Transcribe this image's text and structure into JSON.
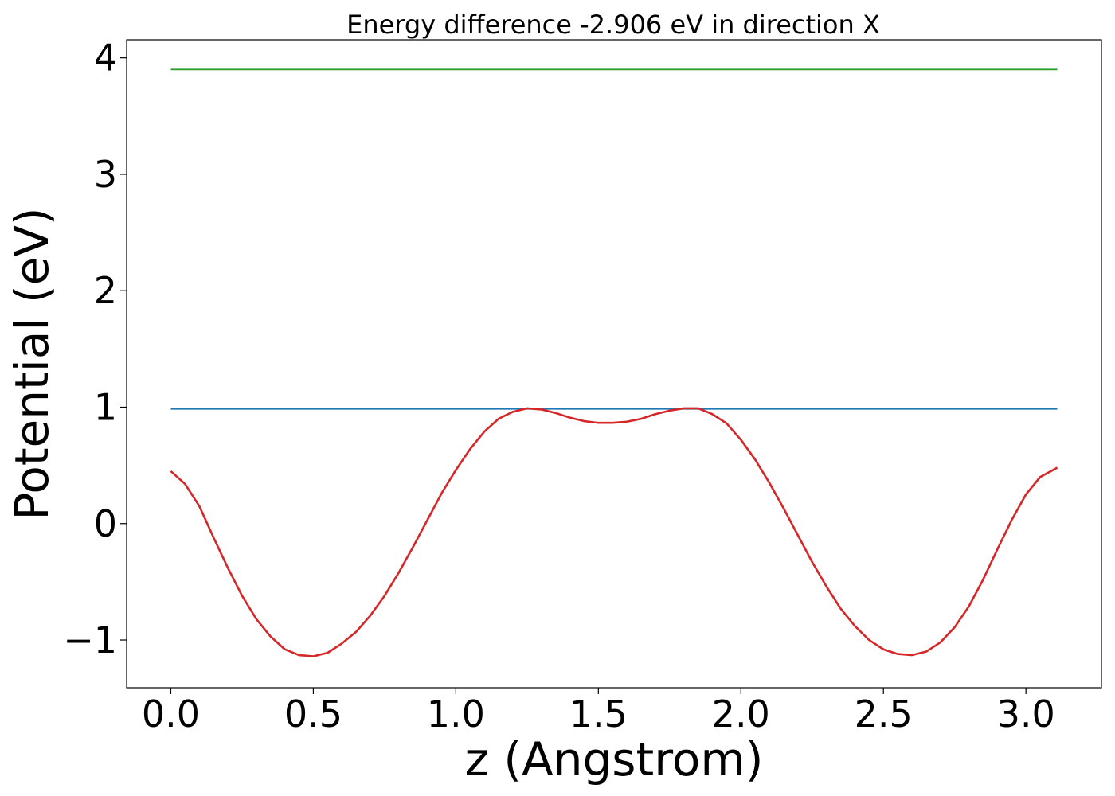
{
  "chart_data": {
    "type": "line",
    "title": "Energy difference -2.906 eV in direction X",
    "xlabel": "z (Angstrom)",
    "ylabel": "Potential (eV)",
    "xlim": [
      -0.155,
      3.265
    ],
    "ylim": [
      -1.41,
      4.155
    ],
    "xticks": [
      0.0,
      0.5,
      1.0,
      1.5,
      2.0,
      2.5,
      3.0
    ],
    "xtick_labels": [
      "0.0",
      "0.5",
      "1.0",
      "1.5",
      "2.0",
      "2.5",
      "3.0"
    ],
    "yticks": [
      -1,
      0,
      1,
      2,
      3,
      4
    ],
    "ytick_labels": [
      "−1",
      "0",
      "1",
      "2",
      "3",
      "4"
    ],
    "grid": false,
    "series": [
      {
        "color": "#2ca02c",
        "x": [
          0.0,
          3.11
        ],
        "y": [
          3.9,
          3.9
        ]
      },
      {
        "color": "#1f77b4",
        "x": [
          0.0,
          3.11
        ],
        "y": [
          0.985,
          0.985
        ]
      },
      {
        "color": "#d62728",
        "x": [
          0.0,
          0.05,
          0.1,
          0.15,
          0.2,
          0.25,
          0.3,
          0.35,
          0.4,
          0.45,
          0.5,
          0.55,
          0.6,
          0.65,
          0.7,
          0.75,
          0.8,
          0.85,
          0.9,
          0.95,
          1.0,
          1.05,
          1.1,
          1.15,
          1.2,
          1.25,
          1.3,
          1.35,
          1.4,
          1.45,
          1.5,
          1.55,
          1.6,
          1.65,
          1.7,
          1.75,
          1.8,
          1.85,
          1.9,
          1.95,
          2.0,
          2.05,
          2.1,
          2.15,
          2.2,
          2.25,
          2.3,
          2.35,
          2.4,
          2.45,
          2.5,
          2.55,
          2.6,
          2.65,
          2.7,
          2.75,
          2.8,
          2.85,
          2.9,
          2.95,
          3.0,
          3.05,
          3.11
        ],
        "y": [
          0.45,
          0.34,
          0.15,
          -0.12,
          -0.38,
          -0.62,
          -0.82,
          -0.97,
          -1.08,
          -1.13,
          -1.14,
          -1.11,
          -1.03,
          -0.93,
          -0.79,
          -0.62,
          -0.42,
          -0.2,
          0.03,
          0.26,
          0.46,
          0.64,
          0.79,
          0.9,
          0.96,
          0.99,
          0.98,
          0.95,
          0.91,
          0.88,
          0.865,
          0.865,
          0.875,
          0.9,
          0.94,
          0.97,
          0.99,
          0.99,
          0.94,
          0.86,
          0.72,
          0.55,
          0.35,
          0.13,
          -0.1,
          -0.33,
          -0.54,
          -0.73,
          -0.88,
          -1.0,
          -1.08,
          -1.12,
          -1.13,
          -1.1,
          -1.02,
          -0.89,
          -0.71,
          -0.48,
          -0.22,
          0.03,
          0.25,
          0.4,
          0.48
        ]
      }
    ]
  }
}
